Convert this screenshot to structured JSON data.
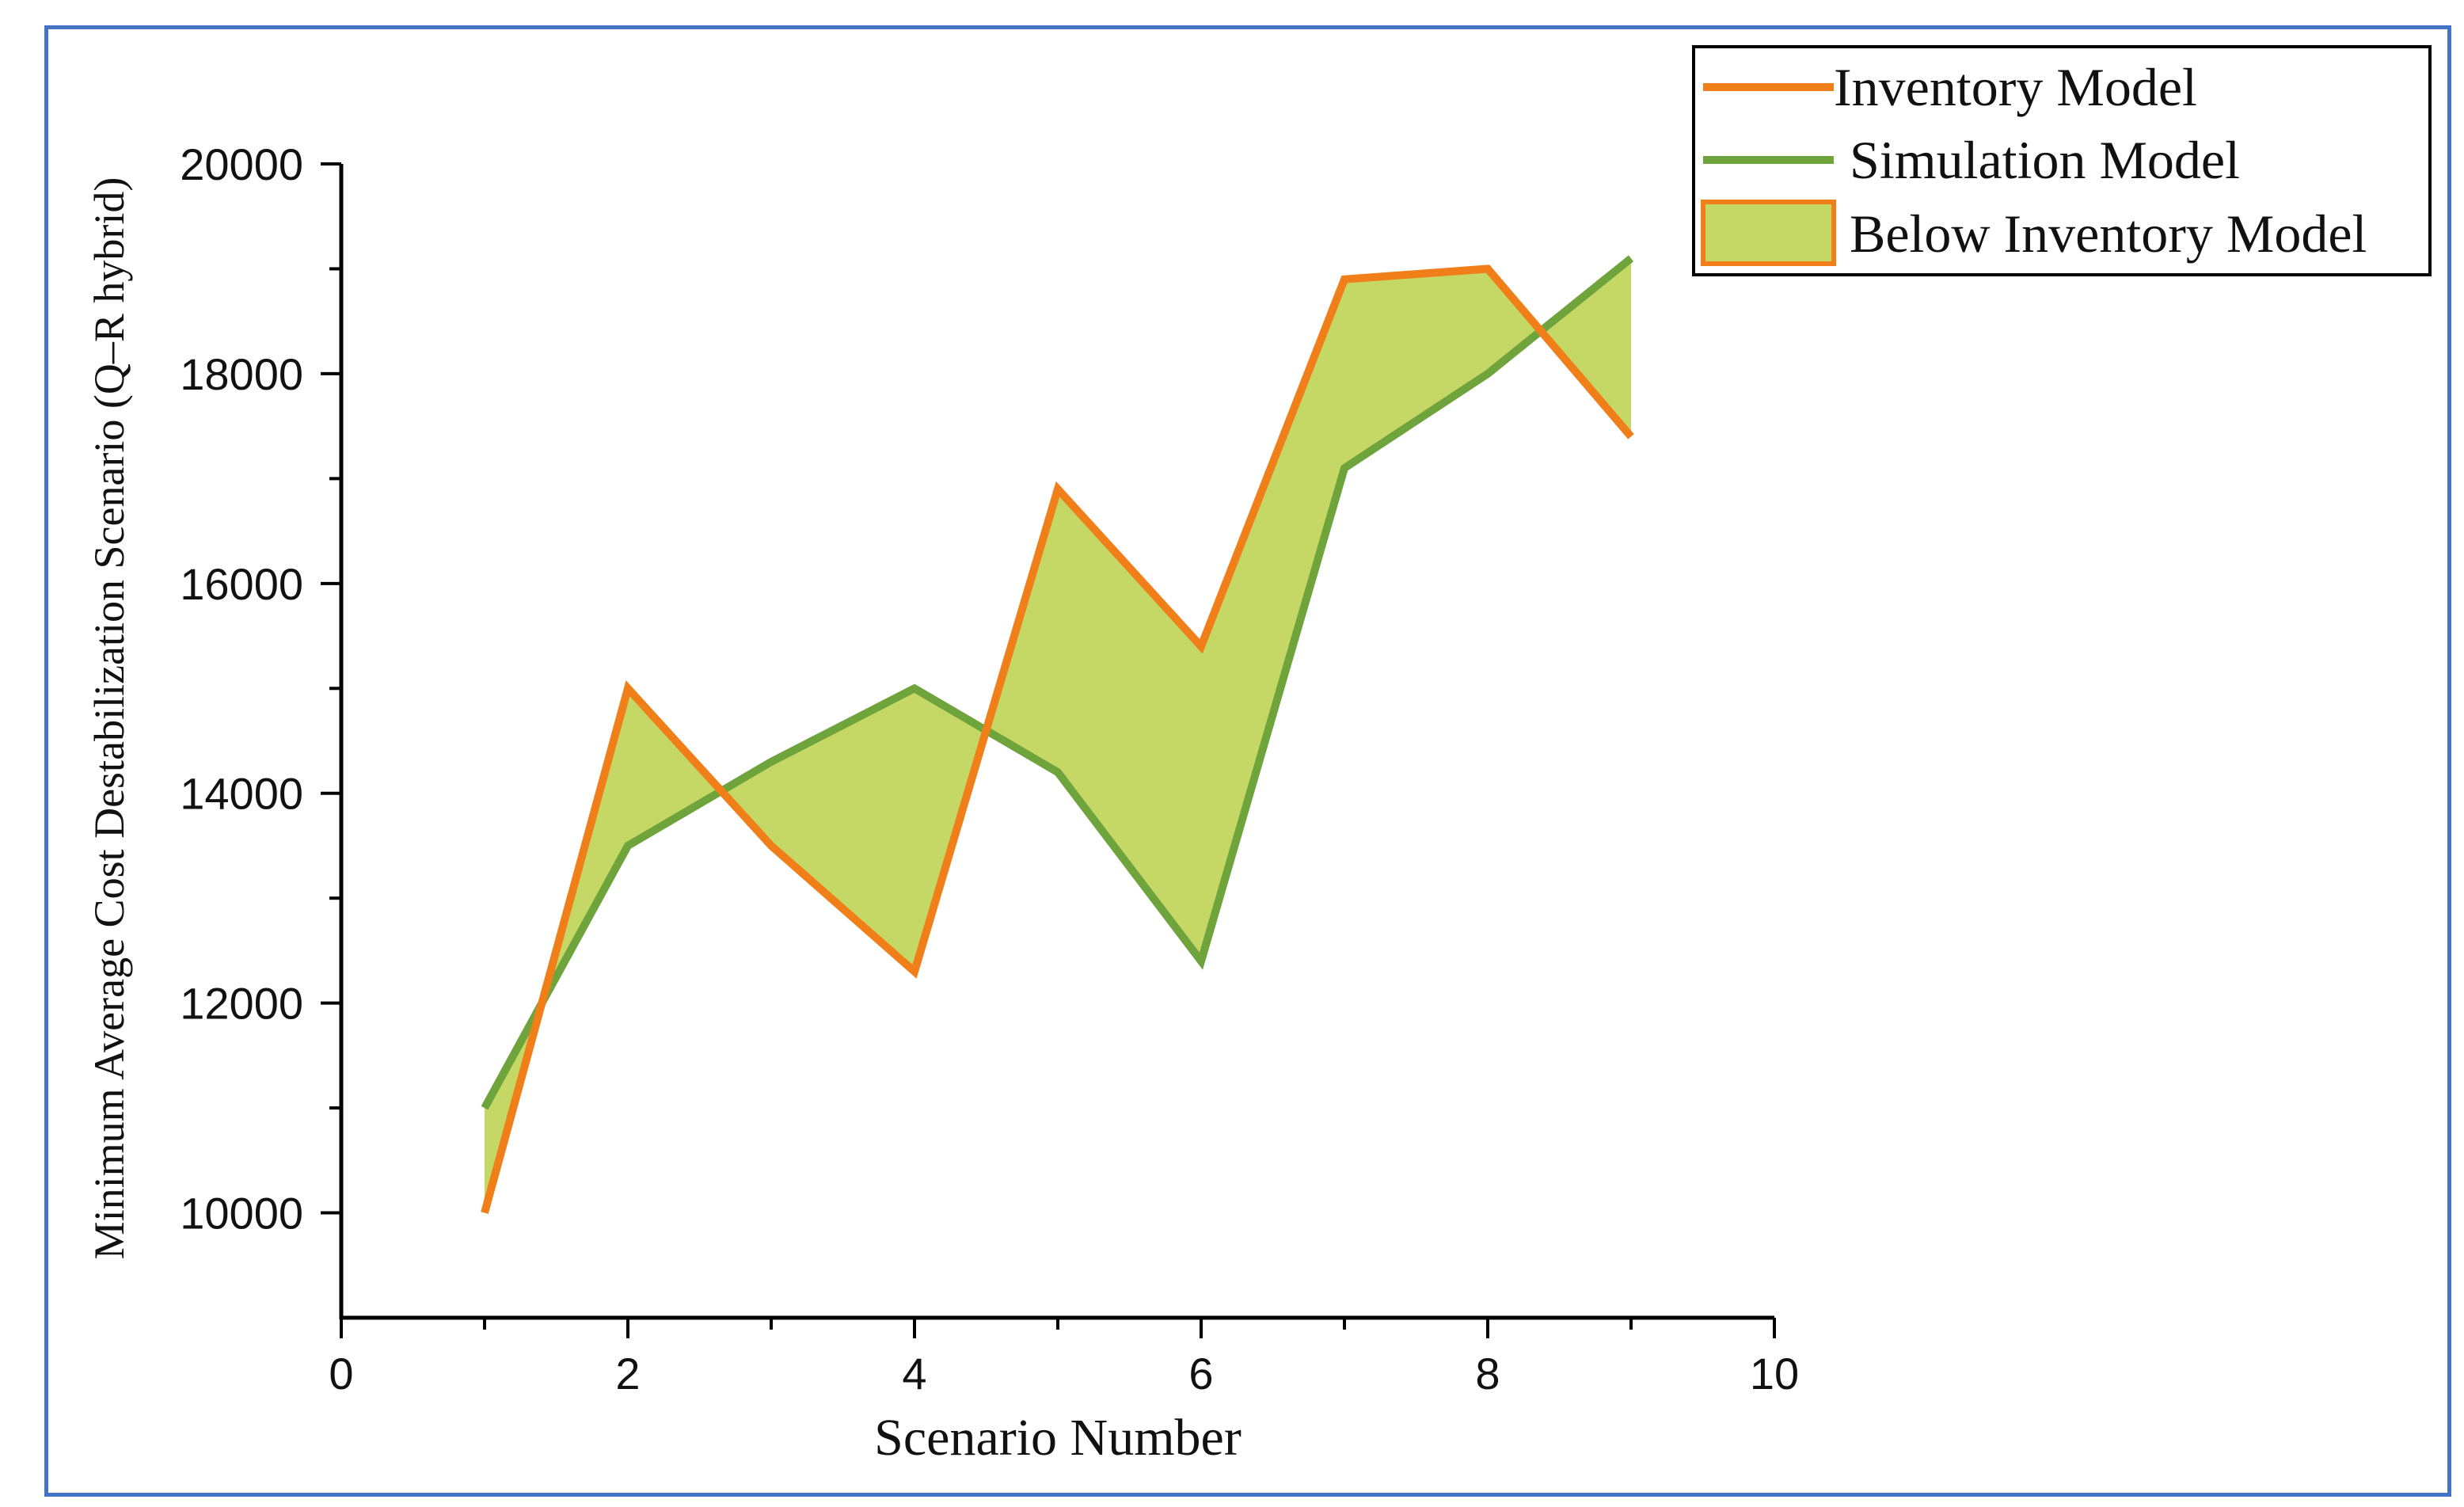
{
  "chart_data": {
    "type": "line",
    "title": "",
    "xlabel": "Scenario Number",
    "ylabel": "Minimum Average Cost Destabilization Scenario (Q–R hybrid)",
    "xlim": [
      0,
      10
    ],
    "ylim": [
      9000,
      20000
    ],
    "xticks": [
      0,
      2,
      4,
      6,
      8,
      10
    ],
    "yticks": [
      10000,
      12000,
      14000,
      16000,
      18000,
      20000
    ],
    "x": [
      1,
      2,
      3,
      4,
      5,
      6,
      7,
      8,
      9
    ],
    "series": [
      {
        "name": "Inventory Model",
        "color": "#f07f1a",
        "values": [
          10000,
          15000,
          13500,
          12300,
          16900,
          15400,
          18900,
          19000,
          17400
        ]
      },
      {
        "name": "Simulation Model",
        "color": "#6fa33b",
        "values": [
          11000,
          13500,
          14300,
          15000,
          14200,
          12400,
          17100,
          18000,
          19100
        ]
      }
    ],
    "fill": {
      "name": "Below Inventory Model",
      "color": "#c5d865",
      "between": [
        "Inventory Model",
        "Simulation Model"
      ]
    },
    "grid": false,
    "legend_position": "top-right"
  }
}
